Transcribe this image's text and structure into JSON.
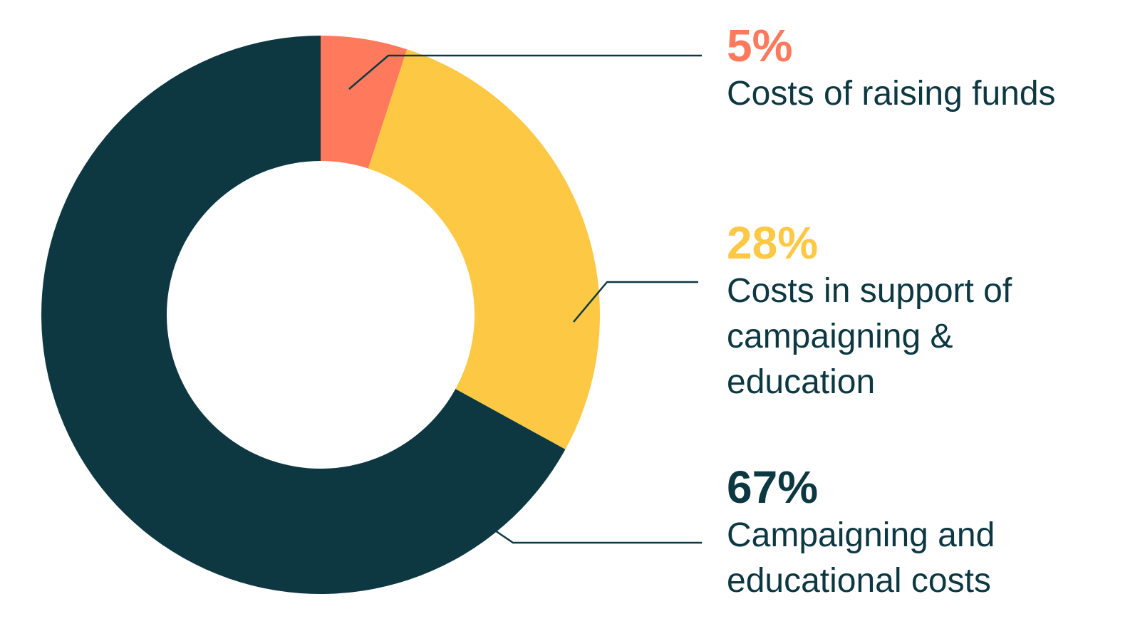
{
  "chart_data": {
    "type": "donut",
    "categories": [
      "Costs of raising funds",
      "Costs in support of campaigning & education",
      "Campaigning and educational costs"
    ],
    "values": [
      5,
      28,
      67
    ],
    "value_labels": [
      "5%",
      "28%",
      "67%"
    ],
    "colors": [
      "#ff7a5c",
      "#fdc844",
      "#0d3842"
    ]
  }
}
